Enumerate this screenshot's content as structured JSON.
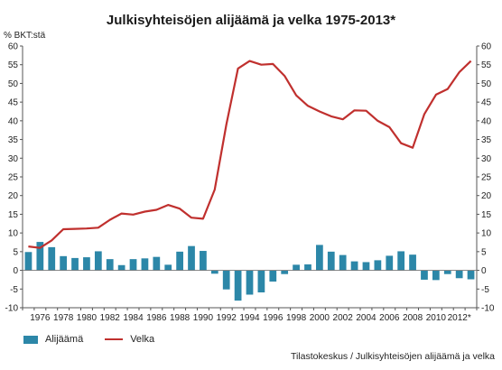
{
  "chart_data": {
    "type": "bar+line",
    "title": "Julkisyhteisöjen alijäämä ja velka 1975-2013*",
    "ylabel": "% BKT:stä",
    "ylim": [
      -10,
      60
    ],
    "yticks": [
      -10,
      -5,
      0,
      5,
      10,
      15,
      20,
      25,
      30,
      35,
      40,
      45,
      50,
      55,
      60
    ],
    "x": [
      1975,
      1976,
      1977,
      1978,
      1979,
      1980,
      1981,
      1982,
      1983,
      1984,
      1985,
      1986,
      1987,
      1988,
      1989,
      1990,
      1991,
      1992,
      1993,
      1994,
      1995,
      1996,
      1997,
      1998,
      1999,
      2000,
      2001,
      2002,
      2003,
      2004,
      2005,
      2006,
      2007,
      2008,
      2009,
      2010,
      2011,
      2012,
      2013
    ],
    "xtick_labels": [
      "1976",
      "1978",
      "1980",
      "1982",
      "1984",
      "1986",
      "1988",
      "1990",
      "1992",
      "1994",
      "1996",
      "1998",
      "2000",
      "2002",
      "2004",
      "2006",
      "2008",
      "2010",
      "2012*"
    ],
    "xtick_years": [
      1976,
      1978,
      1980,
      1982,
      1984,
      1986,
      1988,
      1990,
      1992,
      1994,
      1996,
      1998,
      2000,
      2002,
      2004,
      2006,
      2008,
      2010,
      2012
    ],
    "series": [
      {
        "name": "Alijäämä",
        "kind": "bar",
        "color": "#2c87a8",
        "values": [
          4.9,
          7.6,
          6.2,
          3.8,
          3.3,
          3.5,
          5.1,
          3.0,
          1.4,
          3.0,
          3.2,
          3.6,
          1.5,
          5.0,
          6.5,
          5.2,
          -0.9,
          -5.1,
          -8.1,
          -6.5,
          -5.9,
          -3.0,
          -1.0,
          1.5,
          1.6,
          6.8,
          5.0,
          4.1,
          2.4,
          2.2,
          2.7,
          3.9,
          5.1,
          4.2,
          -2.5,
          -2.6,
          -1.0,
          -2.1,
          -2.4
        ]
      },
      {
        "name": "Velka",
        "kind": "line",
        "color": "#c0302e",
        "values": [
          6.4,
          6.0,
          8.0,
          11.0,
          11.1,
          11.2,
          11.4,
          13.5,
          15.2,
          14.9,
          15.7,
          16.2,
          17.5,
          16.5,
          14.1,
          13.8,
          21.6,
          39.0,
          54.0,
          56.0,
          55.0,
          55.2,
          52.0,
          46.8,
          44.0,
          42.5,
          41.2,
          40.4,
          42.8,
          42.7,
          40.0,
          38.3,
          34.0,
          32.8,
          41.8,
          47.0,
          48.5,
          53.0,
          56.0
        ]
      }
    ],
    "legend_position": "bottom-left",
    "grid": false
  },
  "footer": {
    "source": "Tilastokeskus / Julkisyhteisöjen alijäämä ja velka"
  }
}
